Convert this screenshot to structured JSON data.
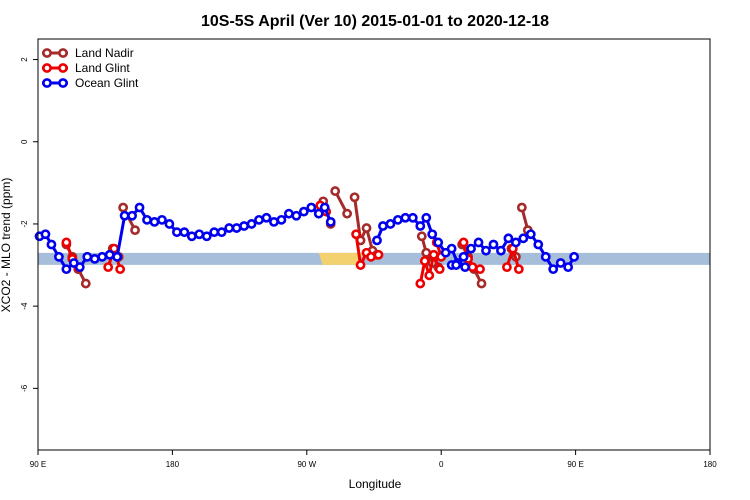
{
  "chart_data": {
    "type": "line",
    "title": "10S-5S April (Ver 10)   2015-01-01 to 2020-12-18",
    "xlabel": "Longitude",
    "ylabel": "XCO2 - MLO trend (ppm)",
    "xlim": [
      90,
      450
    ],
    "ylim": [
      -7.5,
      2.5
    ],
    "x_ticks": [
      {
        "value": 90,
        "label": "90 E"
      },
      {
        "value": 180,
        "label": "180"
      },
      {
        "value": 270,
        "label": "90 W"
      },
      {
        "value": 360,
        "label": "0"
      },
      {
        "value": 450,
        "label": "90 E"
      },
      {
        "value": 540,
        "label": "180"
      }
    ],
    "xlim_full": [
      90,
      540
    ],
    "y_ticks": [
      {
        "value": 2,
        "label": "2"
      },
      {
        "value": 0,
        "label": "0"
      },
      {
        "value": -2,
        "label": "-2"
      },
      {
        "value": -4,
        "label": "-4"
      },
      {
        "value": -6,
        "label": "-6"
      }
    ],
    "legend": {
      "position": "top-left"
    },
    "series": [
      {
        "name": "Land Nadir",
        "color": "#a52a2a",
        "segments": [
          {
            "x": [
              109,
              113,
              117
            ],
            "y": [
              -2.5,
              -2.8,
              -3.1
            ]
          },
          {
            "x": [
              117,
              122
            ],
            "y": [
              -3.1,
              -3.45
            ]
          },
          {
            "x": [
              140,
              144
            ],
            "y": [
              -2.6,
              -2.8
            ]
          },
          {
            "x": [
              147,
              155
            ],
            "y": [
              -1.6,
              -2.15
            ]
          },
          {
            "x": [
              281,
              286
            ],
            "y": [
              -1.45,
              -2.0
            ]
          },
          {
            "x": [
              289,
              297
            ],
            "y": [
              -1.2,
              -1.75
            ]
          },
          {
            "x": [
              302,
              306,
              310,
              314,
              317
            ],
            "y": [
              -1.35,
              -2.4,
              -2.1,
              -2.65,
              -2.75
            ]
          },
          {
            "x": [
              347,
              350,
              354,
              358
            ],
            "y": [
              -2.3,
              -2.7,
              -2.95,
              -3.05
            ]
          },
          {
            "x": [
              374,
              378,
              382,
              387
            ],
            "y": [
              -2.5,
              -2.8,
              -3.1,
              -3.45
            ]
          },
          {
            "x": [
              407,
              410
            ],
            "y": [
              -2.6,
              -2.8
            ]
          },
          {
            "x": [
              414,
              418
            ],
            "y": [
              -1.6,
              -2.15
            ]
          }
        ]
      },
      {
        "name": "Land Glint",
        "color": "#ee0000",
        "segments": [
          {
            "x": [
              109,
              113,
              117
            ],
            "y": [
              -2.45,
              -2.85,
              -3.05
            ]
          },
          {
            "x": [
              137,
              141,
              145
            ],
            "y": [
              -3.05,
              -2.6,
              -3.1
            ]
          },
          {
            "x": [
              279,
              283
            ],
            "y": [
              -1.55,
              -1.7
            ]
          },
          {
            "x": [
              303,
              306,
              310,
              313,
              318
            ],
            "y": [
              -2.25,
              -3.0,
              -2.7,
              -2.8,
              -2.75
            ]
          },
          {
            "x": [
              346,
              349,
              352,
              355,
              359
            ],
            "y": [
              -3.45,
              -2.9,
              -3.25,
              -2.75,
              -3.1
            ]
          },
          {
            "x": [
              357,
              360
            ],
            "y": [
              -2.45,
              -2.8
            ]
          },
          {
            "x": [
              375,
              378,
              381,
              386
            ],
            "y": [
              -2.45,
              -2.85,
              -3.05,
              -3.1
            ]
          },
          {
            "x": [
              404,
              408,
              412
            ],
            "y": [
              -3.05,
              -2.6,
              -3.1
            ]
          }
        ]
      },
      {
        "name": "Ocean Glint",
        "color": "#0000ee",
        "segments": [
          {
            "x": [
              91,
              95,
              99,
              104,
              109,
              114,
              118,
              123,
              128,
              133,
              138,
              143,
              148,
              153,
              158,
              163,
              168,
              173,
              178,
              183,
              188,
              193,
              198,
              203,
              208,
              213,
              218,
              223,
              228,
              233,
              238,
              243,
              248,
              253,
              258,
              263,
              268,
              273,
              278,
              282,
              286
            ],
            "y": [
              -2.3,
              -2.25,
              -2.5,
              -2.8,
              -3.1,
              -2.95,
              -3.05,
              -2.8,
              -2.85,
              -2.8,
              -2.75,
              -2.8,
              -1.8,
              -1.8,
              -1.6,
              -1.9,
              -1.95,
              -1.9,
              -2.0,
              -2.2,
              -2.2,
              -2.3,
              -2.25,
              -2.3,
              -2.2,
              -2.2,
              -2.1,
              -2.1,
              -2.05,
              -2.0,
              -1.9,
              -1.85,
              -1.95,
              -1.9,
              -1.75,
              -1.8,
              -1.7,
              -1.6,
              -1.75,
              -1.6,
              -1.95
            ]
          },
          {
            "x": [
              317,
              321,
              326,
              331,
              336,
              341,
              346,
              350,
              354,
              358,
              363,
              367,
              371,
              376
            ],
            "y": [
              -2.4,
              -2.05,
              -2.0,
              -1.9,
              -1.85,
              -1.85,
              -2.05,
              -1.85,
              -2.25,
              -2.45,
              -2.7,
              -2.6,
              -2.95,
              -3.05
            ]
          },
          {
            "x": [
              367,
              370,
              375,
              380,
              385,
              390,
              395,
              400,
              405,
              410,
              415,
              420,
              425,
              430,
              435,
              440,
              445,
              449
            ],
            "y": [
              -3.0,
              -3.0,
              -2.8,
              -2.6,
              -2.45,
              -2.65,
              -2.5,
              -2.65,
              -2.35,
              -2.45,
              -2.35,
              -2.25,
              -2.5,
              -2.8,
              -3.1,
              -2.95,
              -3.05,
              -2.8
            ]
          }
        ]
      }
    ],
    "background_band": {
      "y": -2.85,
      "color": "#a7bedb",
      "highlight": {
        "x": [
          278,
          305
        ],
        "color": "#f3d16f"
      }
    }
  }
}
